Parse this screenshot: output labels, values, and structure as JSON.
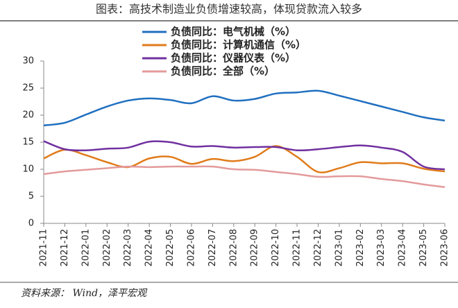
{
  "chart_data": {
    "type": "line",
    "title": "图表：高技术制造业负债增速较高，体现贷款流入较多",
    "source": "资料来源： Wind，泽平宏观",
    "categories": [
      "2021-11",
      "2021-12",
      "2022-01",
      "2022-02",
      "2022-03",
      "2022-04",
      "2022-05",
      "2022-06",
      "2022-07",
      "2022-08",
      "2022-09",
      "2022-10",
      "2022-11",
      "2022-12",
      "2023-01",
      "2023-02",
      "2023-03",
      "2023-04",
      "2023-05",
      "2023-06"
    ],
    "series": [
      {
        "name": "负债同比：电气机械（%）",
        "color": "#1f6fc0",
        "values": [
          18.1,
          18.6,
          20.1,
          21.6,
          22.7,
          23.1,
          22.8,
          22.2,
          23.5,
          22.7,
          23.0,
          24.0,
          24.2,
          24.5,
          23.6,
          22.6,
          21.6,
          20.6,
          19.6,
          19.0
        ]
      },
      {
        "name": "负债同比：计算机通信（%）",
        "color": "#e07b1a",
        "values": [
          12.0,
          13.6,
          12.6,
          11.3,
          10.4,
          12.0,
          12.3,
          11.0,
          11.9,
          11.5,
          12.3,
          14.3,
          12.3,
          9.5,
          10.2,
          11.3,
          11.1,
          11.1,
          10.1,
          9.6
        ]
      },
      {
        "name": "负债同比：仪器仪表（%）",
        "color": "#7030a0",
        "values": [
          15.2,
          13.7,
          13.5,
          13.8,
          14.0,
          15.1,
          15.0,
          14.2,
          14.3,
          14.0,
          14.1,
          14.1,
          13.5,
          13.7,
          14.1,
          14.4,
          14.0,
          13.2,
          10.5,
          10.0
        ]
      },
      {
        "name": "负债同比：全部（%）",
        "color": "#e39a9a",
        "values": [
          9.1,
          9.6,
          9.9,
          10.2,
          10.5,
          10.4,
          10.5,
          10.5,
          10.5,
          10.0,
          9.9,
          9.5,
          9.1,
          8.6,
          8.7,
          8.7,
          8.2,
          7.8,
          7.2,
          6.7
        ]
      }
    ],
    "ylim": [
      0,
      30
    ],
    "yticks": [
      0,
      5,
      10,
      15,
      20,
      25,
      30
    ],
    "grid": false
  }
}
